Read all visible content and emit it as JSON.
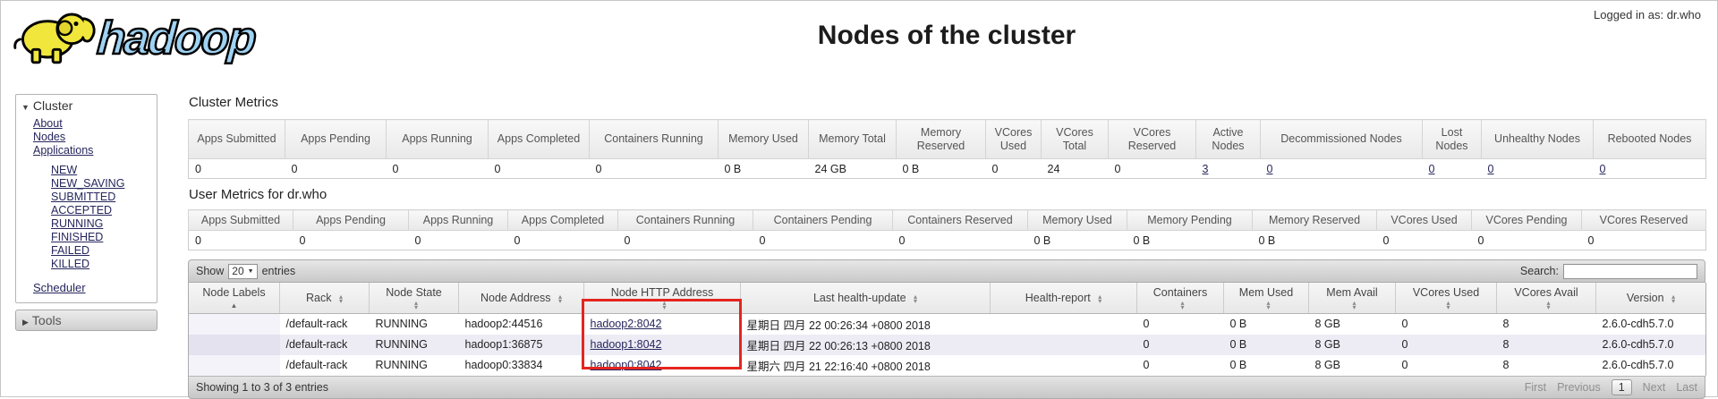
{
  "page": {
    "logged_in_label": "Logged in as: dr.who",
    "title": "Nodes of the cluster",
    "logo_text": "hadoop"
  },
  "sidebar": {
    "cluster": {
      "header": "Cluster",
      "links": [
        "About",
        "Nodes",
        "Applications"
      ],
      "app_states": [
        "NEW",
        "NEW_SAVING",
        "SUBMITTED",
        "ACCEPTED",
        "RUNNING",
        "FINISHED",
        "FAILED",
        "KILLED"
      ],
      "scheduler_label": "Scheduler"
    },
    "tools_header": "Tools"
  },
  "cluster_metrics": {
    "heading": "Cluster Metrics",
    "columns": [
      "Apps Submitted",
      "Apps Pending",
      "Apps Running",
      "Apps Completed",
      "Containers Running",
      "Memory Used",
      "Memory Total",
      "Memory Reserved",
      "VCores Used",
      "VCores Total",
      "VCores Reserved",
      "Active Nodes",
      "Decommissioned Nodes",
      "Lost Nodes",
      "Unhealthy Nodes",
      "Rebooted Nodes"
    ],
    "values": [
      "0",
      "0",
      "0",
      "0",
      "0",
      "0 B",
      "24 GB",
      "0 B",
      "0",
      "24",
      "0",
      "3",
      "0",
      "0",
      "0",
      "0"
    ],
    "linked_columns": [
      11,
      12,
      13,
      14,
      15
    ]
  },
  "user_metrics": {
    "heading": "User Metrics for dr.who",
    "columns": [
      "Apps Submitted",
      "Apps Pending",
      "Apps Running",
      "Apps Completed",
      "Containers Running",
      "Containers Pending",
      "Containers Reserved",
      "Memory Used",
      "Memory Pending",
      "Memory Reserved",
      "VCores Used",
      "VCores Pending",
      "VCores Reserved"
    ],
    "values": [
      "0",
      "0",
      "0",
      "0",
      "0",
      "0",
      "0",
      "0 B",
      "0 B",
      "0 B",
      "0",
      "0",
      "0"
    ]
  },
  "nodes": {
    "show_label": "Show",
    "page_size": "20",
    "entries_label": "entries",
    "search_label": "Search:",
    "search_value": "",
    "columns": [
      {
        "label": "Node Labels",
        "sort": "asc"
      },
      {
        "label": "Rack",
        "sort": "both"
      },
      {
        "label": "Node State",
        "sort": "both"
      },
      {
        "label": "Node Address",
        "sort": "both"
      },
      {
        "label": "Node HTTP Address",
        "sort": "both"
      },
      {
        "label": "Last health-update",
        "sort": "both"
      },
      {
        "label": "Health-report",
        "sort": "both"
      },
      {
        "label": "Containers",
        "sort": "both"
      },
      {
        "label": "Mem Used",
        "sort": "both"
      },
      {
        "label": "Mem Avail",
        "sort": "both"
      },
      {
        "label": "VCores Used",
        "sort": "both"
      },
      {
        "label": "VCores Avail",
        "sort": "both"
      },
      {
        "label": "Version",
        "sort": "both"
      }
    ],
    "rows": [
      [
        "",
        "/default-rack",
        "RUNNING",
        "hadoop2:44516",
        "hadoop2:8042",
        "星期日 四月 22 00:26:34 +0800 2018",
        "",
        "0",
        "0 B",
        "8 GB",
        "0",
        "8",
        "2.6.0-cdh5.7.0"
      ],
      [
        "",
        "/default-rack",
        "RUNNING",
        "hadoop1:36875",
        "hadoop1:8042",
        "星期日 四月 22 00:26:13 +0800 2018",
        "",
        "0",
        "0 B",
        "8 GB",
        "0",
        "8",
        "2.6.0-cdh5.7.0"
      ],
      [
        "",
        "/default-rack",
        "RUNNING",
        "hadoop0:33834",
        "hadoop0:8042",
        "星期六 四月 21 22:16:40 +0800 2018",
        "",
        "0",
        "0 B",
        "8 GB",
        "0",
        "8",
        "2.6.0-cdh5.7.0"
      ]
    ],
    "http_link_column": 4,
    "footer_text": "Showing 1 to 3 of 3 entries",
    "pagination": [
      {
        "label": "First",
        "state": "disabled"
      },
      {
        "label": "Previous",
        "state": "disabled"
      },
      {
        "label": "1",
        "state": "active"
      },
      {
        "label": "Next",
        "state": "disabled"
      },
      {
        "label": "Last",
        "state": "disabled"
      }
    ]
  },
  "annotation": {
    "color": "#e4251f"
  }
}
